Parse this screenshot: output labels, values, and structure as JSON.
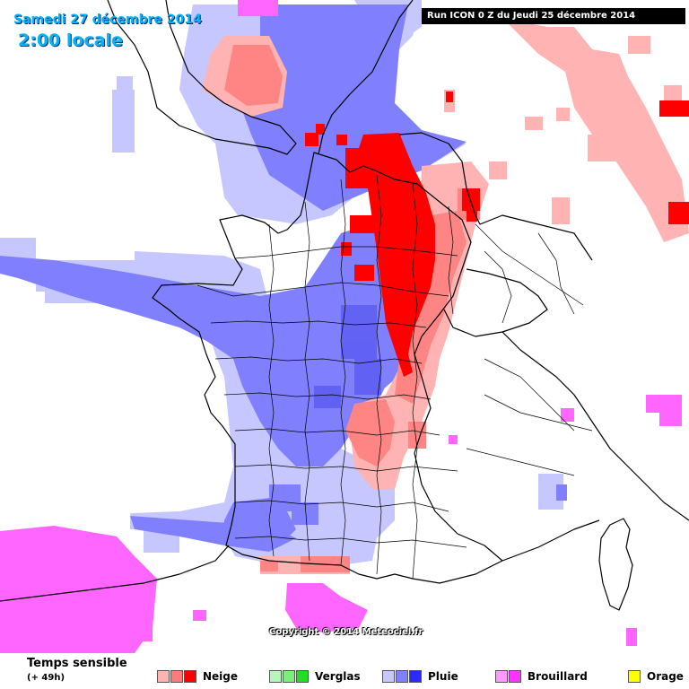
{
  "header": {
    "date": "Samedi 27 décembre 2014",
    "time": "2:00 locale",
    "run": "Run ICON 0 Z du Jeudi 25 décembre 2014"
  },
  "copyright": "Copyright © 2014 Meteociel.fr",
  "legend": {
    "title": "Temps sensible",
    "subtitle": "(+ 49h)",
    "items": [
      {
        "label": "Neige",
        "colors": [
          "#ffb3b3",
          "#ff7a7a",
          "#ff0000"
        ]
      },
      {
        "label": "Verglas",
        "colors": [
          "#b8f5b8",
          "#7aef7a",
          "#22dd22"
        ]
      },
      {
        "label": "Pluie",
        "colors": [
          "#c7c7ff",
          "#8080ff",
          "#2a2aff"
        ]
      },
      {
        "label": "Brouillard",
        "colors": [
          "#ff99ff",
          "#ff33ff"
        ]
      },
      {
        "label": "Orage",
        "colors": [
          "#ffff00"
        ]
      }
    ]
  },
  "colors": {
    "snow_light": "#ffb3b3",
    "snow_mid": "#ff7a7a",
    "snow_heavy": "#ff0000",
    "rain_light": "#c7c7ff",
    "rain_mid": "#8080ff",
    "rain_heavy": "#2a2aff",
    "fog": "#ff66ff",
    "border": "#000000"
  }
}
